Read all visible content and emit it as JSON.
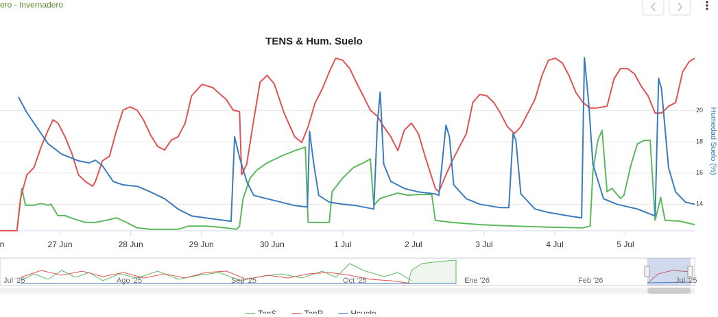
{
  "header": {
    "title": "ero - Invernadero"
  },
  "navigator": {
    "labels": [
      "Jul '25",
      "Ago '25",
      "Sep '25",
      "Oct '25",
      "Ene '26",
      "Feb '26",
      "Jul '25"
    ]
  },
  "chart_data": {
    "type": "line",
    "title": "TENS & Hum. Suelo",
    "xlim": [
      0.15,
      9.98
    ],
    "xticks": [
      {
        "value": 0,
        "label": "n"
      },
      {
        "value": 1,
        "label": "27 Jun"
      },
      {
        "value": 2,
        "label": "28 Jun"
      },
      {
        "value": 3,
        "label": "29 Jun"
      },
      {
        "value": 4,
        "label": "30 Jun"
      },
      {
        "value": 5,
        "label": "1 Jul"
      },
      {
        "value": 6,
        "label": "2 Jul"
      },
      {
        "value": 7,
        "label": "3 Jul"
      },
      {
        "value": 8,
        "label": "4 Jul"
      },
      {
        "value": 9,
        "label": "5 Jul"
      }
    ],
    "ylim": [
      0,
      50
    ],
    "y2lim": [
      12.3,
      23.8
    ],
    "y2ticks": [
      14,
      16,
      18,
      20
    ],
    "y2label": "Humedad Suelo (%)",
    "grid": true,
    "series": [
      {
        "name": "TenS",
        "color": "#5cb85c",
        "x": [
          0.15,
          0.39,
          0.46,
          0.51,
          0.63,
          0.73,
          0.83,
          0.87,
          0.97,
          1.07,
          1.21,
          1.36,
          1.5,
          1.65,
          1.8,
          1.94,
          2.09,
          2.28,
          2.67,
          2.82,
          3.06,
          3.25,
          3.5,
          3.54,
          3.59,
          3.69,
          3.79,
          3.93,
          4.13,
          4.32,
          4.47,
          4.51,
          4.81,
          4.85,
          5.0,
          5.15,
          5.29,
          5.39,
          5.44,
          5.53,
          5.68,
          5.78,
          5.92,
          6.07,
          6.26,
          6.31,
          6.55,
          6.94,
          7.43,
          7.91,
          8.4,
          8.5,
          8.54,
          8.61,
          8.67,
          8.74,
          8.81,
          8.93,
          8.98,
          9.08,
          9.17,
          9.27,
          9.35,
          9.42,
          9.5,
          9.56,
          9.76,
          9.98
        ],
        "values": [
          0,
          0,
          11.8,
          7.1,
          7.1,
          7.6,
          7.1,
          7.4,
          4.2,
          4.2,
          3.2,
          2.3,
          2.3,
          2.9,
          3.6,
          2.3,
          0.8,
          0.4,
          0.4,
          1.3,
          1.3,
          1.0,
          0.4,
          1.3,
          9.0,
          14.7,
          17.0,
          18.9,
          20.8,
          22.3,
          23.3,
          2.3,
          2.3,
          10.9,
          14.7,
          17.6,
          18.9,
          20.0,
          7.1,
          9.0,
          9.9,
          10.5,
          9.9,
          10.1,
          10.1,
          2.9,
          2.3,
          1.7,
          1.3,
          1.0,
          0.8,
          1.3,
          16.6,
          25.2,
          28.0,
          10.9,
          11.8,
          9.0,
          9.9,
          18.5,
          24.2,
          25.2,
          25.2,
          2.9,
          9.3,
          2.9,
          2.7,
          1.7
        ]
      },
      {
        "name": "TenR",
        "color": "#e05252",
        "x": [
          0.15,
          0.39,
          0.44,
          0.53,
          0.63,
          0.73,
          0.83,
          0.9,
          0.97,
          1.07,
          1.17,
          1.26,
          1.36,
          1.46,
          1.5,
          1.6,
          1.7,
          1.8,
          1.89,
          1.99,
          2.09,
          2.18,
          2.28,
          2.38,
          2.48,
          2.57,
          2.67,
          2.77,
          2.86,
          3.01,
          3.16,
          3.35,
          3.45,
          3.54,
          3.57,
          3.64,
          3.74,
          3.83,
          3.93,
          4.03,
          4.17,
          4.32,
          4.42,
          4.51,
          4.61,
          4.71,
          4.81,
          4.9,
          5.0,
          5.1,
          5.19,
          5.29,
          5.39,
          5.49,
          5.58,
          5.68,
          5.78,
          5.87,
          5.97,
          6.07,
          6.17,
          6.31,
          6.36,
          6.46,
          6.55,
          6.65,
          6.75,
          6.84,
          6.94,
          7.04,
          7.14,
          7.23,
          7.33,
          7.43,
          7.52,
          7.62,
          7.72,
          7.82,
          7.91,
          8.01,
          8.11,
          8.2,
          8.3,
          8.4,
          8.5,
          8.59,
          8.74,
          8.84,
          8.93,
          9.03,
          9.13,
          9.22,
          9.32,
          9.42,
          9.51,
          9.61,
          9.71,
          9.81,
          9.9,
          9.98
        ],
        "values": [
          0,
          0,
          9.0,
          15.6,
          17.6,
          23.3,
          28.0,
          30.9,
          30.0,
          26.2,
          21.4,
          15.6,
          13.7,
          12.4,
          13.7,
          19.5,
          20.8,
          28.0,
          33.6,
          34.5,
          33.6,
          30.9,
          26.7,
          23.5,
          22.5,
          25.2,
          26.2,
          30.0,
          37.6,
          40.8,
          39.9,
          36.6,
          33.6,
          33.2,
          15.6,
          18.5,
          30.9,
          41.4,
          43.3,
          41.0,
          32.8,
          26.2,
          24.6,
          29.0,
          35.7,
          39.5,
          44.3,
          48.1,
          47.5,
          45.2,
          41.4,
          37.6,
          33.6,
          31.9,
          29.0,
          26.2,
          22.3,
          28.0,
          30.0,
          27.1,
          20.4,
          11.8,
          10.9,
          15.6,
          19.5,
          23.3,
          27.1,
          35.7,
          38.0,
          37.6,
          35.7,
          32.8,
          29.0,
          27.1,
          29.0,
          32.8,
          36.6,
          43.3,
          47.5,
          48.1,
          46.7,
          43.3,
          38.5,
          35.7,
          34.2,
          34.2,
          34.7,
          42.4,
          45.2,
          45.2,
          43.7,
          40.4,
          37.6,
          32.8,
          32.8,
          34.7,
          35.7,
          44.3,
          47.1,
          48.1
        ]
      },
      {
        "name": "Hsuelo",
        "color": "#3a7bbf",
        "axis": "y2",
        "x": [
          0.41,
          0.53,
          0.73,
          0.83,
          1.02,
          1.26,
          1.41,
          1.5,
          1.6,
          1.75,
          1.89,
          2.09,
          2.28,
          2.48,
          2.67,
          2.86,
          3.06,
          3.42,
          3.47,
          3.54,
          3.64,
          3.74,
          3.93,
          4.13,
          4.32,
          4.5,
          4.53,
          4.59,
          4.66,
          4.81,
          5.0,
          5.19,
          5.44,
          5.49,
          5.53,
          5.58,
          5.68,
          5.87,
          6.07,
          6.31,
          6.36,
          6.46,
          6.51,
          6.57,
          6.75,
          6.94,
          7.23,
          7.35,
          7.41,
          7.45,
          7.52,
          7.72,
          7.91,
          8.2,
          8.38,
          8.42,
          8.48,
          8.54,
          8.69,
          8.88,
          9.17,
          9.42,
          9.47,
          9.51,
          9.61,
          9.71,
          9.85,
          9.98
        ],
        "values": [
          20.88,
          19.87,
          18.54,
          17.88,
          17.22,
          16.78,
          16.65,
          16.82,
          16.47,
          15.46,
          15.24,
          15.15,
          14.79,
          14.35,
          13.69,
          13.25,
          13.12,
          12.9,
          18.32,
          17.0,
          15.46,
          14.57,
          14.35,
          14.13,
          13.91,
          13.82,
          18.68,
          16.56,
          14.57,
          14.13,
          14.0,
          13.91,
          13.69,
          19.21,
          21.19,
          16.56,
          15.46,
          15.01,
          14.79,
          14.66,
          14.57,
          19.07,
          18.32,
          15.24,
          14.35,
          14.0,
          13.78,
          13.78,
          18.54,
          18.1,
          14.66,
          13.69,
          13.47,
          13.25,
          13.12,
          23.4,
          20.53,
          16.56,
          14.35,
          14.0,
          13.69,
          13.25,
          22.07,
          21.41,
          16.34,
          14.79,
          14.13,
          14.0
        ]
      }
    ]
  }
}
